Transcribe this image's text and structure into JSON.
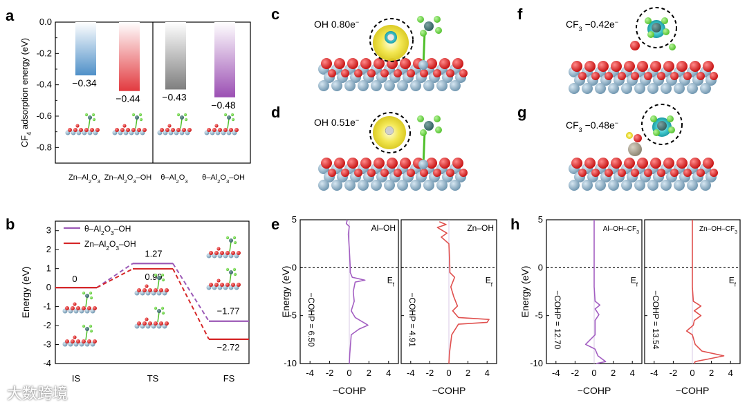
{
  "panels": {
    "a": "a",
    "b": "b",
    "c": "c",
    "d": "d",
    "e": "e",
    "f": "f",
    "g": "g",
    "h": "h"
  },
  "watermark": "大数跨境",
  "chart_data": [
    {
      "id": "a",
      "type": "bar",
      "ylabel_main": "CF",
      "ylabel_sub": "4",
      "ylabel_rest": " adsorption energy (eV)",
      "ylim": [
        -0.9,
        0.0
      ],
      "yticks": [
        0.0,
        -0.2,
        -0.4,
        -0.6,
        -0.8
      ],
      "ytick_labels": [
        "0.0",
        "-0.2",
        "-0.4",
        "-0.6",
        "-0.8"
      ],
      "bars": [
        {
          "category": "Zn–Al2O3",
          "value": -0.34,
          "label": "−0.34",
          "color": "#6aa7d6"
        },
        {
          "category": "Zn–Al2O3–OH",
          "value": -0.44,
          "label": "−0.44",
          "color": "#e8474b"
        },
        {
          "category": "θ–Al2O3",
          "value": -0.43,
          "label": "−0.43",
          "color": "#8d8d8d"
        },
        {
          "category": "θ–Al2O3–OH",
          "value": -0.48,
          "label": "−0.48",
          "color": "#a25db8"
        }
      ],
      "xtick_labels": [
        {
          "pre": "Zn–Al",
          "s1": "2",
          "mid": "O",
          "s2": "3",
          "post": ""
        },
        {
          "pre": "Zn–Al",
          "s1": "2",
          "mid": "O",
          "s2": "3",
          "post": "–OH"
        },
        {
          "pre": "θ–Al",
          "s1": "2",
          "mid": "O",
          "s2": "3",
          "post": ""
        },
        {
          "pre": "θ–Al",
          "s1": "2",
          "mid": "O",
          "s2": "3",
          "post": "–OH"
        }
      ]
    },
    {
      "id": "b",
      "type": "line",
      "ylabel": "Energy (eV)",
      "ylim": [
        -4,
        3.5
      ],
      "yticks": [
        3,
        2,
        1,
        0,
        -1,
        -2,
        -3,
        -4
      ],
      "ytick_labels": [
        "3",
        "2",
        "1",
        "0",
        "-1",
        "-2",
        "-3",
        "-4"
      ],
      "categories": [
        "IS",
        "TS",
        "FS"
      ],
      "series": [
        {
          "name": "θ–Al2O3–OH",
          "legend": {
            "pre": "θ–Al",
            "s1": "2",
            "mid": "O",
            "s2": "3",
            "post": "–OH"
          },
          "color": "#9b59b6",
          "values": [
            0,
            1.27,
            -1.77
          ],
          "labels": [
            "0",
            "1.27",
            "−1.77"
          ]
        },
        {
          "name": "Zn–Al2O3–OH",
          "legend": {
            "pre": "Zn–Al",
            "s1": "2",
            "mid": "O",
            "s2": "3",
            "post": "–OH"
          },
          "color": "#d62728",
          "values": [
            0,
            0.99,
            -2.72
          ],
          "labels": [
            "",
            "0.99",
            "−2.72"
          ]
        }
      ]
    },
    {
      "id": "e",
      "type": "line",
      "ylabel": "Energy (eV)",
      "xlabel": "−COHP",
      "ylim": [
        -10,
        5
      ],
      "yticks": [
        5,
        0,
        -5,
        -10
      ],
      "ytick_labels": [
        "5",
        "0",
        "-5",
        "-10"
      ],
      "fermi": "E",
      "fermi_sub": "f",
      "subplots": [
        {
          "title": "Al–OH",
          "icohp_label": "−COHP = 6.50",
          "color": "#a35fc2",
          "xlim": [
            -5,
            5
          ],
          "xticks": [
            -4,
            -2,
            0,
            2,
            4
          ],
          "xtick_labels": [
            "-4",
            "-2",
            "0",
            "2",
            "4"
          ],
          "curve": [
            [
              -0.2,
              5
            ],
            [
              -0.3,
              4.6
            ],
            [
              0,
              4.3
            ],
            [
              -0.1,
              3.5
            ],
            [
              0,
              2
            ],
            [
              0.1,
              0
            ],
            [
              0.1,
              -0.5
            ],
            [
              0.3,
              -1
            ],
            [
              1.6,
              -1.3
            ],
            [
              0.6,
              -1.5
            ],
            [
              0.4,
              -2.5
            ],
            [
              0.5,
              -3.5
            ],
            [
              0.2,
              -4.5
            ],
            [
              0.6,
              -5.2
            ],
            [
              1.6,
              -5.8
            ],
            [
              1.9,
              -6.0
            ],
            [
              1.0,
              -6.4
            ],
            [
              0.2,
              -7
            ],
            [
              0.05,
              -9
            ],
            [
              0,
              -10
            ]
          ]
        },
        {
          "title": "Zn–OH",
          "icohp_label": "−COHP = 4.91",
          "color": "#e0504e",
          "xlim": [
            -5,
            5
          ],
          "xticks": [
            -4,
            -2,
            0,
            2,
            4
          ],
          "xtick_labels": [
            "-4",
            "-2",
            "0",
            "2",
            "4"
          ],
          "curve": [
            [
              -1,
              4.8
            ],
            [
              -0.3,
              4.5
            ],
            [
              -1.2,
              4.2
            ],
            [
              -0.2,
              3.6
            ],
            [
              -0.8,
              3.2
            ],
            [
              0,
              2.5
            ],
            [
              0.1,
              0
            ],
            [
              0.1,
              -0.5
            ],
            [
              0.6,
              -1
            ],
            [
              0.2,
              -2
            ],
            [
              0.5,
              -3
            ],
            [
              0.9,
              -4
            ],
            [
              0.4,
              -4.5
            ],
            [
              1.0,
              -5.2
            ],
            [
              4.2,
              -5.4
            ],
            [
              4.0,
              -5.7
            ],
            [
              1.0,
              -5.9
            ],
            [
              0.3,
              -7
            ],
            [
              0.05,
              -9
            ],
            [
              0,
              -10
            ]
          ]
        }
      ]
    },
    {
      "id": "h",
      "type": "line",
      "ylabel": "Energy (eV)",
      "xlabel": "−COHP",
      "ylim": [
        -10,
        5
      ],
      "yticks": [
        5,
        0,
        -5,
        -10
      ],
      "ytick_labels": [
        "5",
        "0",
        "-5",
        "-10"
      ],
      "fermi": "E",
      "fermi_sub": "f",
      "subplots": [
        {
          "title": "Al–OH–CF",
          "title_sub": "3",
          "icohp_label": "−COHP = 12.70",
          "color": "#a35fc2",
          "xlim": [
            -5,
            5
          ],
          "xticks": [
            -4,
            -2,
            0,
            2,
            4
          ],
          "xtick_labels": [
            "-4",
            "-2",
            "0",
            "2",
            "4"
          ],
          "curve": [
            [
              0,
              5
            ],
            [
              0,
              2
            ],
            [
              0,
              0
            ],
            [
              0,
              -2
            ],
            [
              0.1,
              -3.5
            ],
            [
              0.6,
              -3.9
            ],
            [
              0.1,
              -4.3
            ],
            [
              0.5,
              -4.9
            ],
            [
              0.1,
              -5.5
            ],
            [
              0.1,
              -7
            ],
            [
              -0.9,
              -8.0
            ],
            [
              -0.3,
              -8.3
            ],
            [
              0.1,
              -8.5
            ],
            [
              0.4,
              -9.2
            ],
            [
              1.2,
              -9.8
            ],
            [
              0.2,
              -10
            ]
          ]
        },
        {
          "title": "Zn–OH–CF",
          "title_sub": "3",
          "icohp_label": "−COHP = 13.54",
          "color": "#e0504e",
          "xlim": [
            -5,
            5
          ],
          "xticks": [
            -4,
            -2,
            0,
            2,
            4
          ],
          "xtick_labels": [
            "-4",
            "-2",
            "0",
            "2",
            "4"
          ],
          "curve": [
            [
              0,
              5
            ],
            [
              0,
              2
            ],
            [
              0,
              0
            ],
            [
              0,
              -2
            ],
            [
              0.1,
              -3.5
            ],
            [
              0.9,
              -4.0
            ],
            [
              0.2,
              -4.5
            ],
            [
              0.9,
              -5.0
            ],
            [
              0.2,
              -5.5
            ],
            [
              0.1,
              -6
            ],
            [
              -0.6,
              -6.6
            ],
            [
              0.0,
              -7
            ],
            [
              0.3,
              -8
            ],
            [
              1.0,
              -8.7
            ],
            [
              3.3,
              -9.2
            ],
            [
              1.8,
              -9.5
            ],
            [
              0.3,
              -9.8
            ],
            [
              0.2,
              -10
            ]
          ]
        }
      ]
    },
    {
      "id": "c",
      "type": "structure",
      "charge_label": "OH 0.80e",
      "charge_sup": "−"
    },
    {
      "id": "d",
      "type": "structure",
      "charge_label": "OH 0.51e",
      "charge_sup": "−"
    },
    {
      "id": "f",
      "type": "structure",
      "charge_pre": "CF",
      "charge_sub": "3",
      "charge_post": " −0.42e",
      "charge_sup": "−"
    },
    {
      "id": "g",
      "type": "structure",
      "charge_pre": "CF",
      "charge_sub": "3",
      "charge_post": " −0.48e",
      "charge_sup": "−"
    }
  ]
}
